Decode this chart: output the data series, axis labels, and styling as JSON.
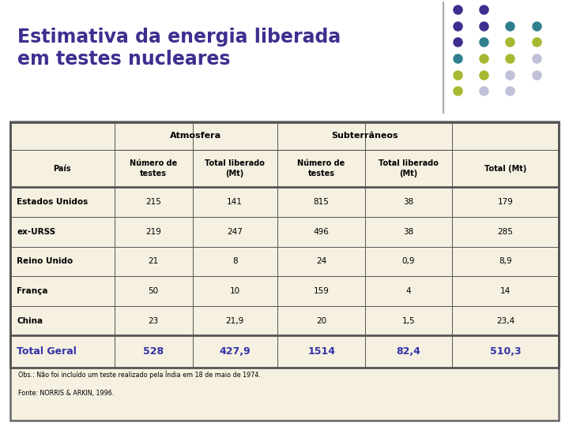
{
  "title": "Estimativa da energia liberada\nem testes nucleares",
  "title_color": "#3d2f8f",
  "bg_color": "#f5f0e0",
  "slide_bg": "#ffffff",
  "total_row_color": "#3333aa",
  "col_headers_level2": [
    "País",
    "Número de\ntestes",
    "Total liberado\n(Mt)",
    "Número de\ntestes",
    "Total liberado\n(Mt)",
    "Total (Mt)"
  ],
  "rows": [
    [
      "Estados Unidos",
      "215",
      "141",
      "815",
      "38",
      "179"
    ],
    [
      "ex-URSS",
      "219",
      "247",
      "496",
      "38",
      "285"
    ],
    [
      "Reino Unido",
      "21",
      "8",
      "24",
      "0,9",
      "8,9"
    ],
    [
      "França",
      "50",
      "10",
      "159",
      "4",
      "14"
    ],
    [
      "China",
      "23",
      "21,9",
      "20",
      "1,5",
      "23,4"
    ]
  ],
  "total_row": [
    "Total Geral",
    "528",
    "427,9",
    "1514",
    "82,4",
    "510,3"
  ],
  "footnotes": [
    "Obs.: Não foi incluído um teste realizado pela Índia em 18 de maio de 1974.",
    "Fonte: NORRIS & ARKIN, 1996."
  ],
  "dot_grid": [
    [
      "#3d2f8f",
      "#3d2f8f",
      null,
      null
    ],
    [
      "#3d2f8f",
      "#3d2f8f",
      "#3d7f8f",
      "#3d7f8f"
    ],
    [
      "#3d2f8f",
      "#3d2f8f",
      "#3d7f8f",
      "#a8b832"
    ],
    [
      "#3d7f8f",
      "#3d7f8f",
      "#a8b832",
      "#c8c8d8"
    ],
    [
      "#a8b832",
      "#a8b832",
      "#c8c8d8",
      "#c8c8d8"
    ],
    [
      "#a8b832",
      "#c8c8d8",
      "#c8c8d8",
      null
    ]
  ],
  "sep_line_color": "#aaaaaa",
  "border_color": "#666666"
}
